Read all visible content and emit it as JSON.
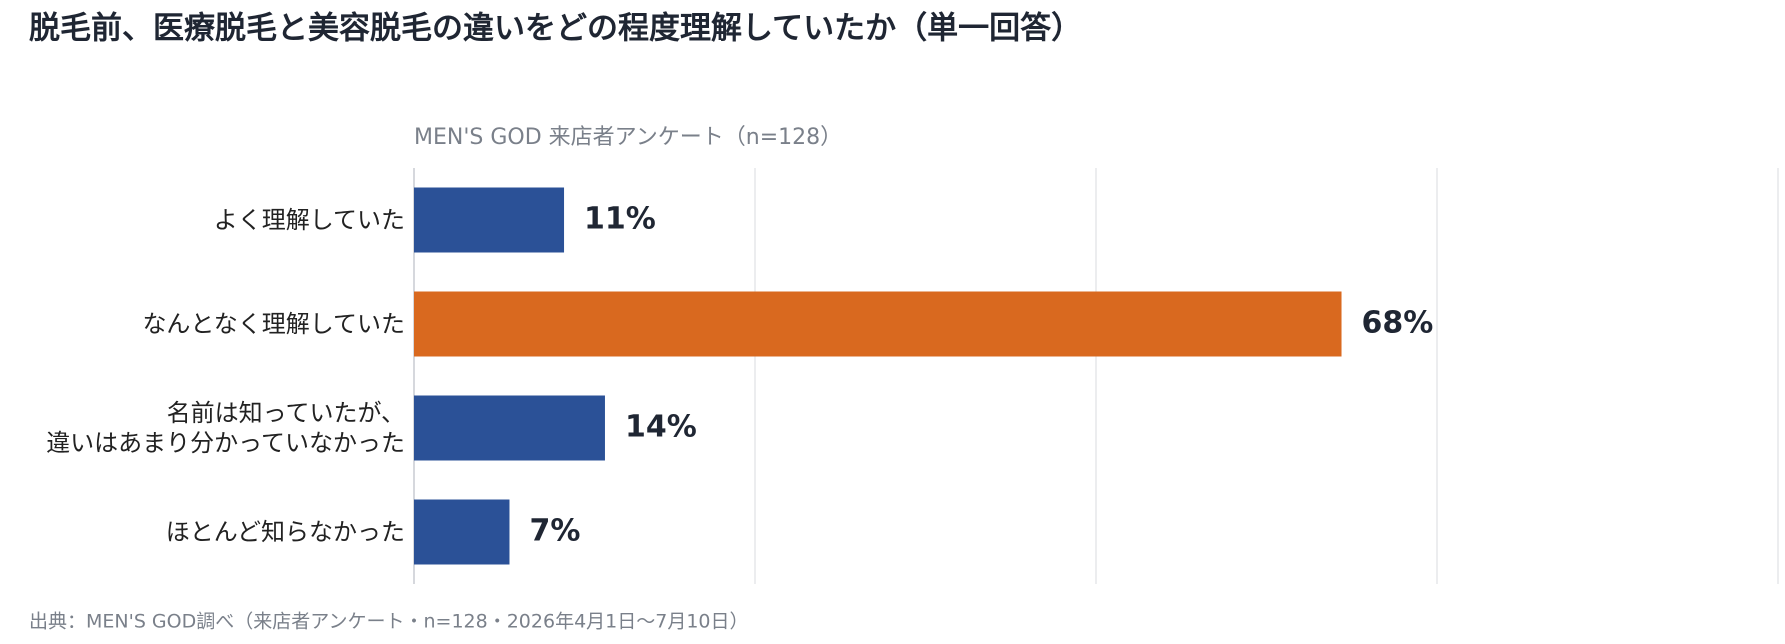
{
  "chart_data": {
    "type": "bar",
    "orientation": "horizontal",
    "title": "脱毛前、医療脱毛と美容脱毛の違いをどの程度理解していたか（単一回答）",
    "subtitle": "MEN'S GOD 来店者アンケート（n=128）",
    "source": "出典：MEN'S GOD調べ（来店者アンケート・n=128・2026年4月1日〜7月10日）",
    "categories": [
      "よく理解していた",
      "なんとなく理解していた",
      "名前は知っていたが、\n違いはあまり分かっていなかった",
      "ほとんど知らなかった"
    ],
    "values": [
      11,
      68,
      14,
      7
    ],
    "value_labels": [
      "11%",
      "68%",
      "14%",
      "7%"
    ],
    "colors": [
      "#2b5197",
      "#d9691f",
      "#2b5197",
      "#2b5197"
    ],
    "xlim": [
      0,
      100
    ],
    "xticks": [
      0,
      25,
      50,
      75,
      100
    ],
    "grid": true
  }
}
